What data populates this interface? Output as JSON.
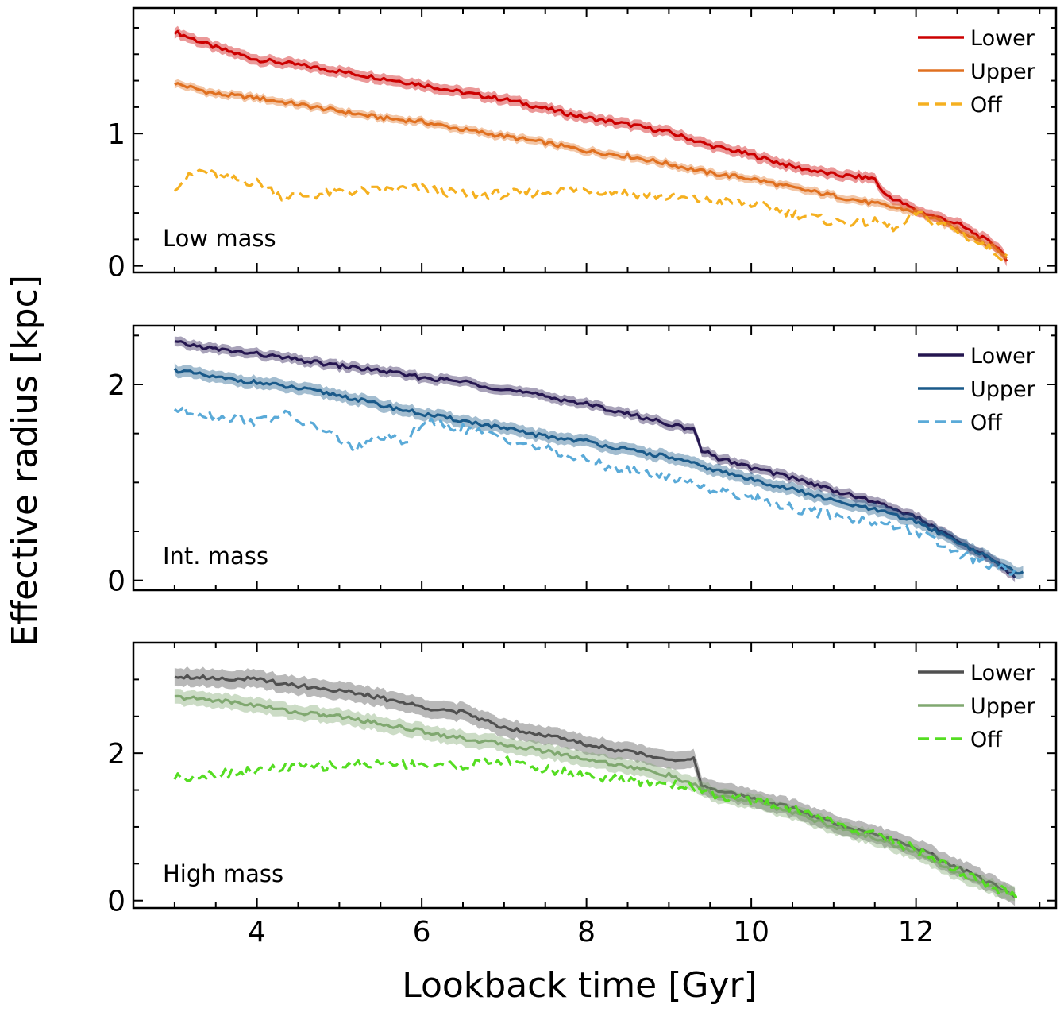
{
  "figure": {
    "ylabel": "Effective radius [kpc]",
    "xlabel": "Lookback time [Gyr]"
  },
  "chart_data": [
    {
      "type": "line",
      "panel_label": "Low mass",
      "xlim": [
        2.5,
        13.7
      ],
      "ylim": [
        -0.05,
        1.95
      ],
      "x_ticks": [
        4,
        6,
        8,
        10,
        12
      ],
      "x_tick_labels": [
        "4",
        "6",
        "8",
        "10",
        "12"
      ],
      "y_ticks": [
        0,
        1
      ],
      "y_tick_labels": [
        "0",
        "1"
      ],
      "legend_position": "top-right",
      "series": [
        {
          "name": "Lower",
          "color": "#cc0000",
          "dashed": false,
          "band": 0.04,
          "x": [
            3.0,
            3.5,
            4.0,
            4.5,
            5.0,
            5.5,
            6.0,
            6.5,
            7.0,
            7.5,
            8.0,
            8.5,
            9.0,
            9.5,
            10.0,
            10.5,
            11.0,
            11.5,
            11.6,
            12.0,
            12.5,
            13.0,
            13.1
          ],
          "y": [
            1.77,
            1.65,
            1.56,
            1.52,
            1.47,
            1.42,
            1.37,
            1.31,
            1.26,
            1.19,
            1.12,
            1.07,
            1.01,
            0.91,
            0.84,
            0.75,
            0.69,
            0.66,
            0.55,
            0.42,
            0.32,
            0.14,
            0.05
          ]
        },
        {
          "name": "Upper",
          "color": "#e07020",
          "dashed": false,
          "band": 0.03,
          "x": [
            3.0,
            3.5,
            4.0,
            4.5,
            5.0,
            5.5,
            6.0,
            6.5,
            7.0,
            7.5,
            8.0,
            8.5,
            9.0,
            9.5,
            10.0,
            10.5,
            11.0,
            11.5,
            12.0,
            12.5,
            13.0,
            13.1
          ],
          "y": [
            1.38,
            1.3,
            1.27,
            1.22,
            1.17,
            1.12,
            1.09,
            1.03,
            0.98,
            0.93,
            0.87,
            0.83,
            0.77,
            0.7,
            0.66,
            0.59,
            0.53,
            0.47,
            0.41,
            0.28,
            0.12,
            0.05
          ]
        },
        {
          "name": "Off",
          "color": "#f5b020",
          "dashed": true,
          "band": 0,
          "x": [
            3.0,
            3.3,
            3.6,
            4.0,
            4.3,
            4.6,
            5.0,
            5.5,
            6.0,
            6.5,
            7.0,
            7.5,
            8.0,
            8.5,
            9.0,
            9.5,
            10.0,
            10.5,
            11.0,
            11.5,
            11.8,
            12.0,
            12.5,
            13.0,
            13.1
          ],
          "y": [
            0.6,
            0.72,
            0.66,
            0.63,
            0.53,
            0.53,
            0.56,
            0.57,
            0.59,
            0.54,
            0.54,
            0.56,
            0.58,
            0.55,
            0.52,
            0.49,
            0.47,
            0.4,
            0.33,
            0.33,
            0.28,
            0.4,
            0.26,
            0.09,
            0.06
          ]
        }
      ]
    },
    {
      "type": "line",
      "panel_label": "Int. mass",
      "xlim": [
        2.5,
        13.7
      ],
      "ylim": [
        -0.1,
        2.6
      ],
      "x_ticks": [
        4,
        6,
        8,
        10,
        12
      ],
      "x_tick_labels": [
        "4",
        "6",
        "8",
        "10",
        "12"
      ],
      "y_ticks": [
        0,
        2
      ],
      "y_tick_labels": [
        "0",
        "2"
      ],
      "legend_position": "top-right",
      "series": [
        {
          "name": "Lower",
          "color": "#251650",
          "dashed": false,
          "band": 0.05,
          "x": [
            3.0,
            3.5,
            4.0,
            4.5,
            5.0,
            5.5,
            6.0,
            6.5,
            7.0,
            7.5,
            8.0,
            8.5,
            9.0,
            9.3,
            9.4,
            9.6,
            10.0,
            10.5,
            11.0,
            11.5,
            12.0,
            12.5,
            13.0,
            13.2
          ],
          "y": [
            2.43,
            2.36,
            2.31,
            2.25,
            2.19,
            2.14,
            2.07,
            2.03,
            1.95,
            1.88,
            1.8,
            1.7,
            1.6,
            1.53,
            1.33,
            1.25,
            1.15,
            1.05,
            0.92,
            0.8,
            0.65,
            0.4,
            0.18,
            0.03
          ]
        },
        {
          "name": "Upper",
          "color": "#1a5a8a",
          "dashed": false,
          "band": 0.06,
          "x": [
            3.0,
            3.5,
            4.0,
            4.5,
            5.0,
            5.5,
            6.0,
            6.5,
            7.0,
            7.5,
            8.0,
            8.5,
            9.0,
            9.5,
            10.0,
            10.5,
            11.0,
            11.5,
            12.0,
            12.5,
            13.0,
            13.3
          ],
          "y": [
            2.15,
            2.07,
            2.02,
            1.96,
            1.89,
            1.79,
            1.7,
            1.63,
            1.55,
            1.47,
            1.42,
            1.33,
            1.26,
            1.14,
            1.03,
            0.93,
            0.81,
            0.72,
            0.6,
            0.4,
            0.17,
            0.07
          ]
        },
        {
          "name": "Off",
          "color": "#5aaad8",
          "dashed": true,
          "band": 0,
          "x": [
            3.0,
            3.5,
            4.0,
            4.3,
            4.6,
            5.0,
            5.2,
            5.5,
            5.8,
            6.0,
            6.5,
            7.0,
            7.5,
            8.0,
            8.5,
            9.0,
            9.3,
            9.5,
            10.0,
            10.5,
            11.0,
            11.5,
            12.0,
            12.5,
            13.0,
            13.2
          ],
          "y": [
            1.75,
            1.68,
            1.62,
            1.7,
            1.6,
            1.45,
            1.33,
            1.48,
            1.4,
            1.62,
            1.55,
            1.45,
            1.34,
            1.22,
            1.12,
            1.06,
            1.0,
            0.93,
            0.85,
            0.74,
            0.66,
            0.6,
            0.5,
            0.28,
            0.12,
            0.08
          ]
        }
      ]
    },
    {
      "type": "line",
      "panel_label": "High mass",
      "xlim": [
        2.5,
        13.7
      ],
      "ylim": [
        -0.1,
        3.5
      ],
      "x_ticks": [
        4,
        6,
        8,
        10,
        12
      ],
      "x_tick_labels": [
        "4",
        "6",
        "8",
        "10",
        "12"
      ],
      "y_ticks": [
        0,
        2
      ],
      "y_tick_labels": [
        "0",
        "2"
      ],
      "legend_position": "top-right",
      "series": [
        {
          "name": "Lower",
          "color": "#505050",
          "dashed": false,
          "band": 0.12,
          "x": [
            3.0,
            3.5,
            4.0,
            4.5,
            5.0,
            5.5,
            6.0,
            6.5,
            7.0,
            7.5,
            8.0,
            8.5,
            9.0,
            9.3,
            9.4,
            9.6,
            10.0,
            10.5,
            11.0,
            11.5,
            12.0,
            12.5,
            13.0,
            13.2
          ],
          "y": [
            3.05,
            3.02,
            3.0,
            2.92,
            2.85,
            2.75,
            2.63,
            2.55,
            2.35,
            2.25,
            2.12,
            2.02,
            1.92,
            1.92,
            1.55,
            1.48,
            1.4,
            1.25,
            1.05,
            0.9,
            0.72,
            0.45,
            0.18,
            0.07
          ]
        },
        {
          "name": "Upper",
          "color": "#80a870",
          "dashed": false,
          "band": 0.1,
          "x": [
            3.0,
            3.5,
            4.0,
            4.5,
            5.0,
            5.5,
            6.0,
            6.5,
            7.0,
            7.5,
            8.0,
            8.5,
            9.0,
            9.4,
            9.6,
            10.0,
            10.5,
            11.0,
            11.5,
            12.0,
            12.5,
            13.0,
            13.2
          ],
          "y": [
            2.76,
            2.72,
            2.65,
            2.55,
            2.5,
            2.4,
            2.3,
            2.2,
            2.12,
            2.03,
            1.92,
            1.82,
            1.7,
            1.52,
            1.42,
            1.35,
            1.2,
            1.0,
            0.85,
            0.65,
            0.38,
            0.15,
            0.07
          ]
        },
        {
          "name": "Off",
          "color": "#55dd22",
          "dashed": true,
          "band": 0,
          "x": [
            3.0,
            3.5,
            4.0,
            4.5,
            5.0,
            5.5,
            6.0,
            6.5,
            7.0,
            7.5,
            8.0,
            8.5,
            9.0,
            9.4,
            9.6,
            10.0,
            10.5,
            11.0,
            11.5,
            12.0,
            12.5,
            13.0,
            13.25
          ],
          "y": [
            1.67,
            1.72,
            1.76,
            1.82,
            1.83,
            1.86,
            1.85,
            1.83,
            1.9,
            1.78,
            1.7,
            1.62,
            1.59,
            1.52,
            1.42,
            1.35,
            1.25,
            1.05,
            0.9,
            0.7,
            0.4,
            0.15,
            0.07
          ]
        }
      ]
    }
  ]
}
